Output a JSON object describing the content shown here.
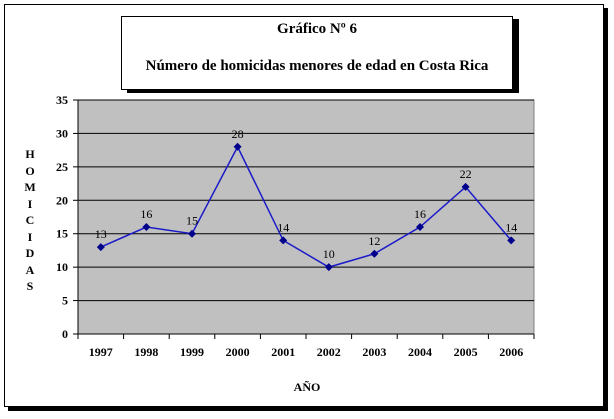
{
  "chart_data": {
    "type": "line",
    "title": "Gráfico Nº 6",
    "subtitle": "Número de homicidas menores de edad en Costa Rica",
    "xlabel": "AÑO",
    "ylabel": "HOMICIDAS",
    "categories": [
      "1997",
      "1998",
      "1999",
      "2000",
      "2001",
      "2002",
      "2003",
      "2004",
      "2005",
      "2006"
    ],
    "values": [
      13,
      16,
      15,
      28,
      14,
      10,
      12,
      16,
      22,
      14
    ],
    "ylim": [
      0,
      35
    ],
    "yticks": [
      "0",
      "5",
      "10",
      "15",
      "20",
      "25",
      "30",
      "35"
    ],
    "grid": true,
    "colors": {
      "line": "#1a1ac8",
      "plot_bg": "#c0c0c0"
    }
  }
}
